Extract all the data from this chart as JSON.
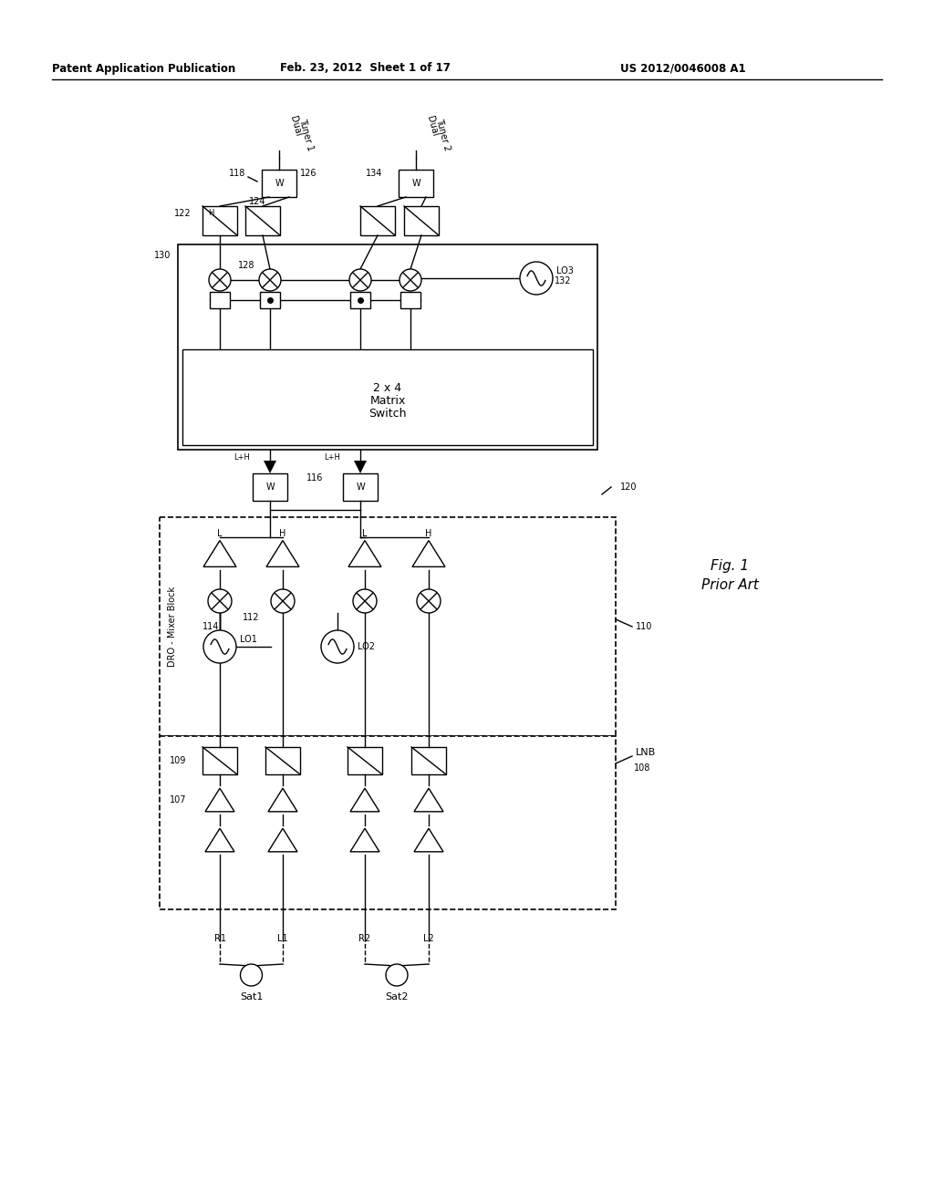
{
  "bg_color": "#ffffff",
  "line_color": "#000000",
  "header_left": "Patent Application Publication",
  "header_mid": "Feb. 23, 2012  Sheet 1 of 17",
  "header_right": "US 2012/0046008 A1"
}
